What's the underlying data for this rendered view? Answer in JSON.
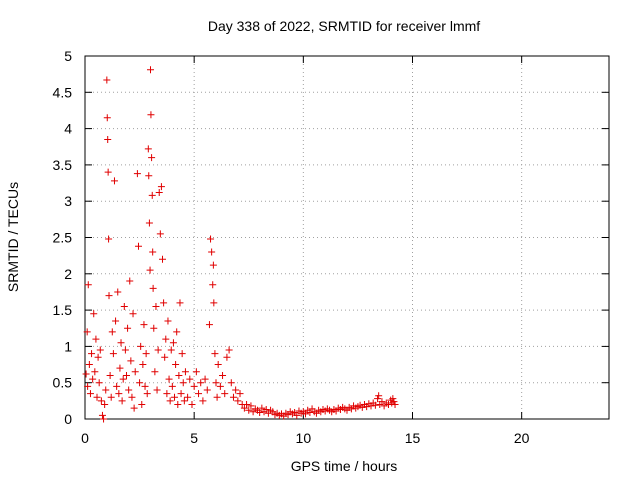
{
  "chart_data": {
    "type": "scatter",
    "title": "Day 338 of 2022, SRMTID for receiver lmmf",
    "xlabel": "GPS time / hours",
    "ylabel": "SRMTID / TECUs",
    "xlim": [
      0,
      24
    ],
    "ylim": [
      0,
      5
    ],
    "xticks": [
      0,
      5,
      10,
      15,
      20
    ],
    "yticks": [
      0,
      0.5,
      1,
      1.5,
      2,
      2.5,
      3,
      3.5,
      4,
      4.5,
      5
    ],
    "x_tick_labels": [
      "0",
      "5",
      "10",
      "15",
      "20"
    ],
    "y_tick_labels": [
      "0",
      "0.5",
      "1",
      "1.5",
      "2",
      "2.5",
      "3",
      "3.5",
      "4",
      "4.5",
      "5"
    ],
    "grid": true,
    "marker": "+",
    "color": "#e00000",
    "series": [
      {
        "name": "SRMTID",
        "points": [
          [
            0.05,
            0.62
          ],
          [
            0.1,
            1.2
          ],
          [
            0.12,
            0.45
          ],
          [
            0.15,
            1.85
          ],
          [
            0.2,
            0.75
          ],
          [
            0.25,
            0.35
          ],
          [
            0.3,
            0.9
          ],
          [
            0.35,
            0.55
          ],
          [
            0.4,
            1.45
          ],
          [
            0.45,
            0.65
          ],
          [
            0.5,
            1.1
          ],
          [
            0.55,
            0.3
          ],
          [
            0.6,
            0.85
          ],
          [
            0.65,
            0.5
          ],
          [
            0.7,
            0.95
          ],
          [
            0.75,
            0.25
          ],
          [
            0.8,
            0.05
          ],
          [
            0.85,
            0.0
          ],
          [
            0.9,
            0.2
          ],
          [
            0.95,
            0.4
          ],
          [
            1.0,
            4.67
          ],
          [
            1.02,
            4.15
          ],
          [
            1.04,
            3.85
          ],
          [
            1.06,
            3.4
          ],
          [
            1.08,
            2.48
          ],
          [
            1.1,
            1.7
          ],
          [
            1.15,
            0.6
          ],
          [
            1.2,
            0.3
          ],
          [
            1.25,
            1.2
          ],
          [
            1.3,
            0.9
          ],
          [
            1.35,
            3.28
          ],
          [
            1.4,
            1.35
          ],
          [
            1.45,
            0.45
          ],
          [
            1.5,
            1.75
          ],
          [
            1.55,
            0.35
          ],
          [
            1.6,
            0.7
          ],
          [
            1.65,
            1.05
          ],
          [
            1.7,
            0.25
          ],
          [
            1.75,
            0.55
          ],
          [
            1.8,
            1.55
          ],
          [
            1.85,
            0.95
          ],
          [
            1.9,
            0.6
          ],
          [
            1.95,
            1.25
          ],
          [
            2.0,
            0.4
          ],
          [
            2.05,
            1.9
          ],
          [
            2.1,
            0.8
          ],
          [
            2.15,
            0.3
          ],
          [
            2.2,
            1.45
          ],
          [
            2.25,
            0.15
          ],
          [
            2.3,
            0.65
          ],
          [
            2.4,
            3.38
          ],
          [
            2.45,
            2.38
          ],
          [
            2.5,
            0.5
          ],
          [
            2.55,
            1.0
          ],
          [
            2.6,
            0.2
          ],
          [
            2.65,
            0.75
          ],
          [
            2.7,
            1.3
          ],
          [
            2.75,
            0.45
          ],
          [
            2.8,
            0.9
          ],
          [
            2.85,
            0.35
          ],
          [
            2.9,
            3.72
          ],
          [
            2.92,
            3.35
          ],
          [
            2.95,
            2.7
          ],
          [
            2.98,
            2.05
          ],
          [
            3.0,
            4.81
          ],
          [
            3.02,
            4.19
          ],
          [
            3.05,
            3.6
          ],
          [
            3.08,
            3.08
          ],
          [
            3.1,
            2.3
          ],
          [
            3.12,
            1.8
          ],
          [
            3.15,
            1.25
          ],
          [
            3.2,
            0.65
          ],
          [
            3.25,
            1.55
          ],
          [
            3.3,
            0.4
          ],
          [
            3.35,
            0.95
          ],
          [
            3.4,
            3.12
          ],
          [
            3.45,
            2.55
          ],
          [
            3.5,
            3.2
          ],
          [
            3.55,
            2.2
          ],
          [
            3.6,
            1.6
          ],
          [
            3.65,
            0.85
          ],
          [
            3.7,
            1.1
          ],
          [
            3.75,
            0.35
          ],
          [
            3.8,
            1.35
          ],
          [
            3.85,
            0.55
          ],
          [
            3.9,
            0.25
          ],
          [
            3.95,
            0.95
          ],
          [
            4.0,
            0.45
          ],
          [
            4.05,
            1.05
          ],
          [
            4.1,
            0.3
          ],
          [
            4.15,
            0.75
          ],
          [
            4.2,
            1.2
          ],
          [
            4.25,
            0.2
          ],
          [
            4.3,
            0.6
          ],
          [
            4.35,
            1.6
          ],
          [
            4.4,
            0.35
          ],
          [
            4.45,
            0.9
          ],
          [
            4.5,
            0.5
          ],
          [
            4.55,
            0.25
          ],
          [
            4.6,
            0.65
          ],
          [
            4.7,
            0.3
          ],
          [
            4.8,
            0.55
          ],
          [
            4.9,
            0.2
          ],
          [
            5.0,
            0.45
          ],
          [
            5.1,
            0.65
          ],
          [
            5.2,
            0.35
          ],
          [
            5.3,
            0.5
          ],
          [
            5.4,
            0.25
          ],
          [
            5.5,
            0.55
          ],
          [
            5.6,
            0.4
          ],
          [
            5.7,
            1.3
          ],
          [
            5.75,
            2.48
          ],
          [
            5.8,
            2.3
          ],
          [
            5.85,
            1.85
          ],
          [
            5.88,
            2.12
          ],
          [
            5.9,
            1.6
          ],
          [
            5.95,
            0.9
          ],
          [
            6.0,
            0.5
          ],
          [
            6.05,
            0.3
          ],
          [
            6.1,
            0.75
          ],
          [
            6.2,
            0.45
          ],
          [
            6.3,
            0.6
          ],
          [
            6.4,
            0.35
          ],
          [
            6.5,
            0.85
          ],
          [
            6.6,
            0.95
          ],
          [
            6.7,
            0.5
          ],
          [
            6.8,
            0.3
          ],
          [
            6.9,
            0.4
          ],
          [
            7.0,
            0.25
          ],
          [
            7.1,
            0.35
          ],
          [
            7.2,
            0.2
          ],
          [
            7.3,
            0.15
          ],
          [
            7.4,
            0.2
          ],
          [
            7.5,
            0.12
          ],
          [
            7.6,
            0.18
          ],
          [
            7.7,
            0.1
          ],
          [
            7.8,
            0.14
          ],
          [
            7.9,
            0.12
          ],
          [
            8.0,
            0.09
          ],
          [
            8.1,
            0.15
          ],
          [
            8.2,
            0.1
          ],
          [
            8.3,
            0.13
          ],
          [
            8.4,
            0.08
          ],
          [
            8.5,
            0.12
          ],
          [
            8.6,
            0.1
          ],
          [
            8.7,
            0.06
          ],
          [
            8.8,
            0.08
          ],
          [
            8.9,
            0.05
          ],
          [
            9.0,
            0.07
          ],
          [
            9.1,
            0.04
          ],
          [
            9.2,
            0.08
          ],
          [
            9.3,
            0.06
          ],
          [
            9.4,
            0.1
          ],
          [
            9.5,
            0.07
          ],
          [
            9.6,
            0.09
          ],
          [
            9.7,
            0.05
          ],
          [
            9.8,
            0.11
          ],
          [
            9.9,
            0.08
          ],
          [
            10.0,
            0.1
          ],
          [
            10.1,
            0.07
          ],
          [
            10.2,
            0.12
          ],
          [
            10.3,
            0.09
          ],
          [
            10.4,
            0.14
          ],
          [
            10.5,
            0.1
          ],
          [
            10.6,
            0.08
          ],
          [
            10.7,
            0.12
          ],
          [
            10.8,
            0.1
          ],
          [
            10.9,
            0.13
          ],
          [
            11.0,
            0.11
          ],
          [
            11.1,
            0.14
          ],
          [
            11.2,
            0.12
          ],
          [
            11.3,
            0.1
          ],
          [
            11.4,
            0.13
          ],
          [
            11.5,
            0.11
          ],
          [
            11.6,
            0.15
          ],
          [
            11.7,
            0.13
          ],
          [
            11.8,
            0.16
          ],
          [
            11.9,
            0.14
          ],
          [
            12.0,
            0.12
          ],
          [
            12.1,
            0.16
          ],
          [
            12.2,
            0.14
          ],
          [
            12.3,
            0.18
          ],
          [
            12.4,
            0.15
          ],
          [
            12.5,
            0.17
          ],
          [
            12.6,
            0.19
          ],
          [
            12.7,
            0.16
          ],
          [
            12.8,
            0.2
          ],
          [
            12.9,
            0.17
          ],
          [
            13.0,
            0.21
          ],
          [
            13.1,
            0.18
          ],
          [
            13.2,
            0.22
          ],
          [
            13.3,
            0.19
          ],
          [
            13.4,
            0.28
          ],
          [
            13.45,
            0.32
          ],
          [
            13.5,
            0.2
          ],
          [
            13.6,
            0.24
          ],
          [
            13.7,
            0.18
          ],
          [
            13.8,
            0.22
          ],
          [
            13.9,
            0.2
          ],
          [
            14.0,
            0.26
          ],
          [
            14.05,
            0.22
          ],
          [
            14.1,
            0.28
          ],
          [
            14.15,
            0.24
          ],
          [
            14.2,
            0.2
          ]
        ]
      }
    ]
  }
}
